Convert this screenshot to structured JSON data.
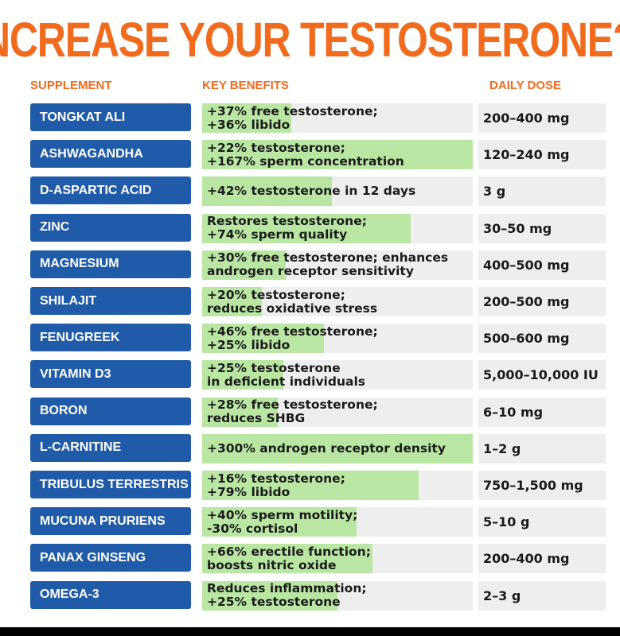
{
  "title": "INCREASE YOUR TESTOSTERONE?!",
  "headers": {
    "supplement": "SUPPLEMENT",
    "benefits": "KEY BENEFITS",
    "dose": "DAILY DOSE"
  },
  "colors": {
    "accent": "#f26b1d",
    "name_bg": "#1f5ba8",
    "bar": "#b9e7a3",
    "cell_bg": "#eeeeee"
  },
  "rows": [
    {
      "name": "TONGKAT ALI",
      "benefit": "+37% free testosterone;\n+36% libido",
      "dose": "200–400 mg",
      "bar": 0.33
    },
    {
      "name": "ASHWAGANDHA",
      "benefit": "+22% testosterone;\n+167% sperm concentration",
      "dose": "120–240 mg",
      "bar": 1.0
    },
    {
      "name": "D-ASPARTIC ACID",
      "benefit": "+42% testosterone in 12 days",
      "dose": "3 g",
      "bar": 0.48
    },
    {
      "name": "ZINC",
      "benefit": "Restores testosterone;\n+74% sperm quality",
      "dose": "30–50 mg",
      "bar": 0.77
    },
    {
      "name": "MAGNESIUM",
      "benefit": "+30% free testosterone; enhances\nandrogen receptor sensitivity",
      "dose": "400–500 mg",
      "bar": 0.31
    },
    {
      "name": "SHILAJIT",
      "benefit": "+20% testosterone;\nreduces oxidative stress",
      "dose": "200–500 mg",
      "bar": 0.22
    },
    {
      "name": "FENUGREEK",
      "benefit": "+46% free testosterone;\n+25% libido",
      "dose": "500–600 mg",
      "bar": 0.45
    },
    {
      "name": "VITAMIN D3",
      "benefit": "+25% testosterone\nin deficient individuals",
      "dose": "5,000–10,000 IU",
      "bar": 0.3
    },
    {
      "name": "BORON",
      "benefit": "+28% free testosterone;\nreduces SHBG",
      "dose": "6–10 mg",
      "bar": 0.28
    },
    {
      "name": "L-CARNITINE",
      "benefit": "+300% androgen receptor density",
      "dose": "1–2 g",
      "bar": 1.0
    },
    {
      "name": "TRIBULUS TERRESTRIS",
      "benefit": "+16% testosterone;\n+79% libido",
      "dose": "750–1,500 mg",
      "bar": 0.8
    },
    {
      "name": "MUCUNA PRURIENS",
      "benefit": "+40% sperm motility;\n-30% cortisol",
      "dose": "5–10 g",
      "bar": 0.57
    },
    {
      "name": "PANAX GINSENG",
      "benefit": "+66% erectile function;\nboosts nitric oxide",
      "dose": "200–400 mg",
      "bar": 0.63
    },
    {
      "name": "OMEGA-3",
      "benefit": "Reduces inflammation;\n+25% testosterone",
      "dose": "2–3 g",
      "bar": 0.5
    }
  ]
}
